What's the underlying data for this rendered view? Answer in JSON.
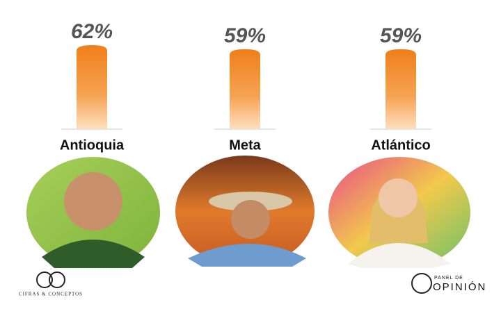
{
  "chart_data": {
    "type": "bar",
    "categories": [
      "Antioquia",
      "Meta",
      "Atlántico"
    ],
    "values": [
      62,
      59,
      59
    ],
    "value_labels": [
      "62%",
      "59%",
      "59%"
    ],
    "color": "#f08a24"
  },
  "logos": {
    "left": "CIFRAS & CONCEPTOS",
    "right_top": "PANEL DE",
    "right_main": "OPINIÓN"
  }
}
